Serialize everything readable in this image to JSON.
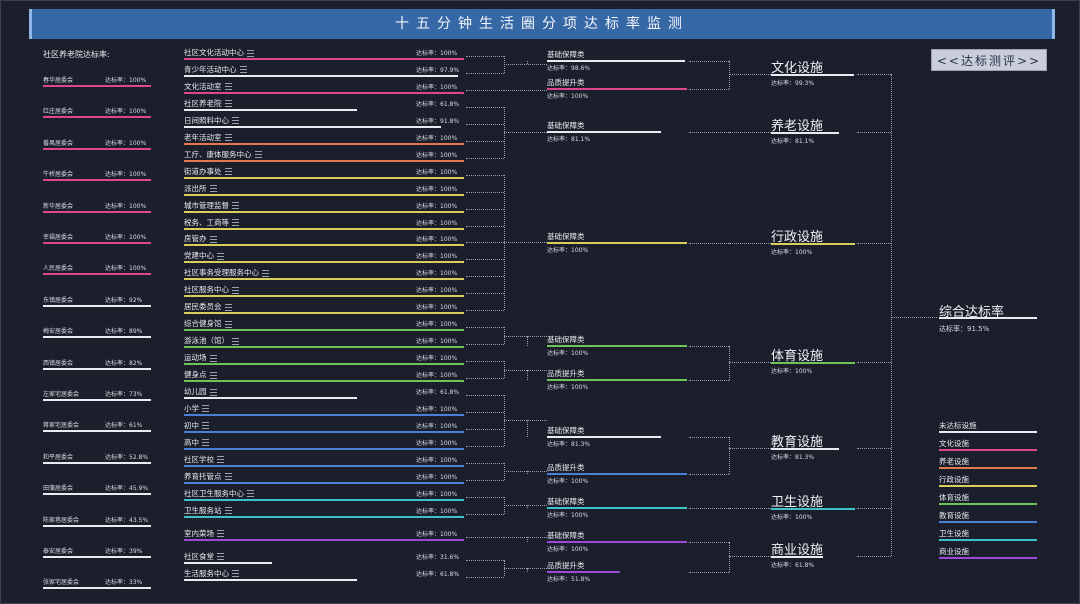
{
  "title": "十五分钟生活圈分项达标率监测",
  "button_label": "<<达标测评>>",
  "left_title": "社区养老院达标率:",
  "rate_prefix": "达标率：",
  "communities": [
    {
      "name": "春华居委会",
      "rate": "100%",
      "color": "#e0468f"
    },
    {
      "name": "红庄居委会",
      "rate": "100%",
      "color": "#e0468f"
    },
    {
      "name": "番禺居委会",
      "rate": "100%",
      "color": "#e0468f"
    },
    {
      "name": "牛桥居委会",
      "rate": "100%",
      "color": "#e0468f"
    },
    {
      "name": "新华居委会",
      "rate": "100%",
      "color": "#e0468f"
    },
    {
      "name": "幸福居委会",
      "rate": "100%",
      "color": "#e0468f"
    },
    {
      "name": "人民居委会",
      "rate": "100%",
      "color": "#e0468f"
    },
    {
      "name": "东镇居委会",
      "rate": "92%",
      "color": "#e9ebf0"
    },
    {
      "name": "梅安居委会",
      "rate": "89%",
      "color": "#e9ebf0"
    },
    {
      "name": "西镇居委会",
      "rate": "82%",
      "color": "#e9ebf0"
    },
    {
      "name": "左家宅居委会",
      "rate": "73%",
      "color": "#e9ebf0"
    },
    {
      "name": "蒋家宅居委会",
      "rate": "61%",
      "color": "#e9ebf0"
    },
    {
      "name": "和平居委会",
      "rate": "52.8%",
      "color": "#e9ebf0"
    },
    {
      "name": "田蒲居委会",
      "rate": "45.9%",
      "color": "#e9ebf0"
    },
    {
      "name": "陈家巷居委会",
      "rate": "43.5%",
      "color": "#e9ebf0"
    },
    {
      "name": "泰安居委会",
      "rate": "39%",
      "color": "#e9ebf0"
    },
    {
      "name": "张家宅居委会",
      "rate": "33%",
      "color": "#e9ebf0"
    }
  ],
  "facilities": [
    {
      "name": "社区文化活动中心",
      "rate": "100%",
      "color": "#e0468f",
      "fill": 1.0
    },
    {
      "name": "青少年活动中心",
      "rate": "97.9%",
      "color": "#e9ebf0",
      "fill": 0.979
    },
    {
      "name": "文化活动室",
      "rate": "100%",
      "color": "#e0468f",
      "fill": 1.0
    },
    {
      "name": "社区养老院",
      "rate": "61.8%",
      "color": "#e9ebf0",
      "fill": 0.618
    },
    {
      "name": "日间照料中心",
      "rate": "91.8%",
      "color": "#e9ebf0",
      "fill": 0.918
    },
    {
      "name": "老年活动室",
      "rate": "100%",
      "color": "#e07850",
      "fill": 1.0
    },
    {
      "name": "工疗、康体服务中心",
      "rate": "100%",
      "color": "#e07850",
      "fill": 1.0
    },
    {
      "name": "街道办事处",
      "rate": "100%",
      "color": "#d8cf5a",
      "fill": 1.0
    },
    {
      "name": "派出所",
      "rate": "100%",
      "color": "#d8cf5a",
      "fill": 1.0
    },
    {
      "name": "城市管理监督",
      "rate": "100%",
      "color": "#d8cf5a",
      "fill": 1.0
    },
    {
      "name": "税务、工商等",
      "rate": "100%",
      "color": "#d8cf5a",
      "fill": 1.0
    },
    {
      "name": "房管办",
      "rate": "100%",
      "color": "#d8cf5a",
      "fill": 1.0
    },
    {
      "name": "党建中心",
      "rate": "100%",
      "color": "#d8cf5a",
      "fill": 1.0
    },
    {
      "name": "社区事务受理服务中心",
      "rate": "100%",
      "color": "#d8cf5a",
      "fill": 1.0
    },
    {
      "name": "社区服务中心",
      "rate": "100%",
      "color": "#d8cf5a",
      "fill": 1.0
    },
    {
      "name": "居民委员会",
      "rate": "100%",
      "color": "#d8cf5a",
      "fill": 1.0
    },
    {
      "name": "综合健身馆",
      "rate": "100%",
      "color": "#6cc45a",
      "fill": 1.0
    },
    {
      "name": "游泳池（馆）",
      "rate": "100%",
      "color": "#6cc45a",
      "fill": 1.0
    },
    {
      "name": "运动场",
      "rate": "100%",
      "color": "#6cc45a",
      "fill": 1.0
    },
    {
      "name": "健身点",
      "rate": "100%",
      "color": "#6cc45a",
      "fill": 1.0
    },
    {
      "name": "幼儿园",
      "rate": "61.8%",
      "color": "#e9ebf0",
      "fill": 0.618
    },
    {
      "name": "小学",
      "rate": "100%",
      "color": "#4a7fd6",
      "fill": 1.0
    },
    {
      "name": "初中",
      "rate": "100%",
      "color": "#4a7fd6",
      "fill": 1.0
    },
    {
      "name": "高中",
      "rate": "100%",
      "color": "#4a7fd6",
      "fill": 1.0
    },
    {
      "name": "社区学校",
      "rate": "100%",
      "color": "#4a7fd6",
      "fill": 1.0
    },
    {
      "name": "养育托管点",
      "rate": "100%",
      "color": "#4a7fd6",
      "fill": 1.0
    },
    {
      "name": "社区卫生服务中心",
      "rate": "100%",
      "color": "#3ec2c8",
      "fill": 1.0
    },
    {
      "name": "卫生服务站",
      "rate": "100%",
      "color": "#3ec2c8",
      "fill": 1.0
    },
    {
      "name": "室内菜场",
      "rate": "100%",
      "color": "#9c4ad6",
      "fill": 1.0
    },
    {
      "name": "社区食堂",
      "rate": "31.6%",
      "color": "#e9ebf0",
      "fill": 0.316
    },
    {
      "name": "生活服务中心",
      "rate": "61.8%",
      "color": "#e9ebf0",
      "fill": 0.618
    }
  ],
  "subcats": [
    {
      "name": "基础保障类",
      "rate": "98.6%",
      "color": "#e9ebf0",
      "fill": 0.986
    },
    {
      "name": "品质提升类",
      "rate": "100%",
      "color": "#e0468f",
      "fill": 1.0
    },
    {
      "name": "基础保障类",
      "rate": "81.1%",
      "color": "#e9ebf0",
      "fill": 0.811
    },
    {
      "name": "基础保障类",
      "rate": "100%",
      "color": "#d8cf5a",
      "fill": 1.0
    },
    {
      "name": "基础保障类",
      "rate": "100%",
      "color": "#6cc45a",
      "fill": 1.0
    },
    {
      "name": "品质提升类",
      "rate": "100%",
      "color": "#6cc45a",
      "fill": 1.0
    },
    {
      "name": "基础保障类",
      "rate": "81.3%",
      "color": "#e9ebf0",
      "fill": 0.813
    },
    {
      "name": "品质提升类",
      "rate": "100%",
      "color": "#4a7fd6",
      "fill": 1.0
    },
    {
      "name": "基础保障类",
      "rate": "100%",
      "color": "#3ec2c8",
      "fill": 1.0
    },
    {
      "name": "基础保障类",
      "rate": "100%",
      "color": "#9c4ad6",
      "fill": 1.0
    },
    {
      "name": "品质提升类",
      "rate": "51.8%",
      "color": "#9c4ad6",
      "fill": 0.518
    }
  ],
  "categories": [
    {
      "name": "文化设施",
      "rate": "99.3%",
      "color": "#e9ebf0",
      "fill": 0.993
    },
    {
      "name": "养老设施",
      "rate": "81.1%",
      "color": "#e9ebf0",
      "fill": 0.811
    },
    {
      "name": "行政设施",
      "rate": "100%",
      "color": "#d8cf5a",
      "fill": 1.0
    },
    {
      "name": "体育设施",
      "rate": "100%",
      "color": "#6cc45a",
      "fill": 1.0
    },
    {
      "name": "教育设施",
      "rate": "81.3%",
      "color": "#e9ebf0",
      "fill": 0.813
    },
    {
      "name": "卫生设施",
      "rate": "100%",
      "color": "#3ec2c8",
      "fill": 1.0
    },
    {
      "name": "商业设施",
      "rate": "61.8%",
      "color": "#e9ebf0",
      "fill": 0.618
    }
  ],
  "overall": {
    "name": "综合达标率",
    "rate": "91.5%"
  },
  "legend": [
    {
      "name": "未达标设施",
      "color": "#e9ebf0"
    },
    {
      "name": "文化设施",
      "color": "#e0468f"
    },
    {
      "name": "养老设施",
      "color": "#e07850"
    },
    {
      "name": "行政设施",
      "color": "#d8cf5a"
    },
    {
      "name": "体育设施",
      "color": "#6cc45a"
    },
    {
      "name": "教育设施",
      "color": "#4a7fd6"
    },
    {
      "name": "卫生设施",
      "color": "#3ec2c8"
    },
    {
      "name": "商业设施",
      "color": "#9c4ad6"
    }
  ]
}
